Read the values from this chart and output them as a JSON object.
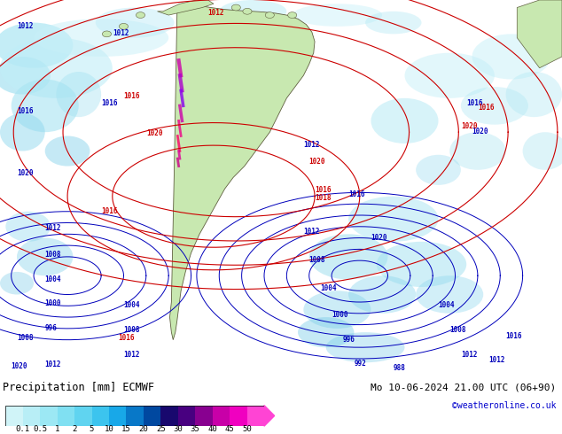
{
  "title_left": "Precipitation [mm] ECMWF",
  "title_right": "Mo 10-06-2024 21.00 UTC (06+90)",
  "credit": "©weatheronline.co.uk",
  "colorbar_values": [
    0.1,
    0.5,
    1,
    2,
    5,
    10,
    15,
    20,
    25,
    30,
    35,
    40,
    45,
    50
  ],
  "colorbar_colors": [
    "#d0f4f8",
    "#b8eef6",
    "#9ce8f4",
    "#80e0f2",
    "#60d4f0",
    "#3cc4ee",
    "#18a8e8",
    "#0878c8",
    "#0048a0",
    "#18086e",
    "#480080",
    "#880090",
    "#c800a8",
    "#f000c0",
    "#ff44d4"
  ],
  "bg_color": "#ffffff",
  "map_bg": "#cce8f4",
  "land_color": "#c8e8b0",
  "figsize": [
    6.34,
    4.9
  ],
  "dpi": 100
}
